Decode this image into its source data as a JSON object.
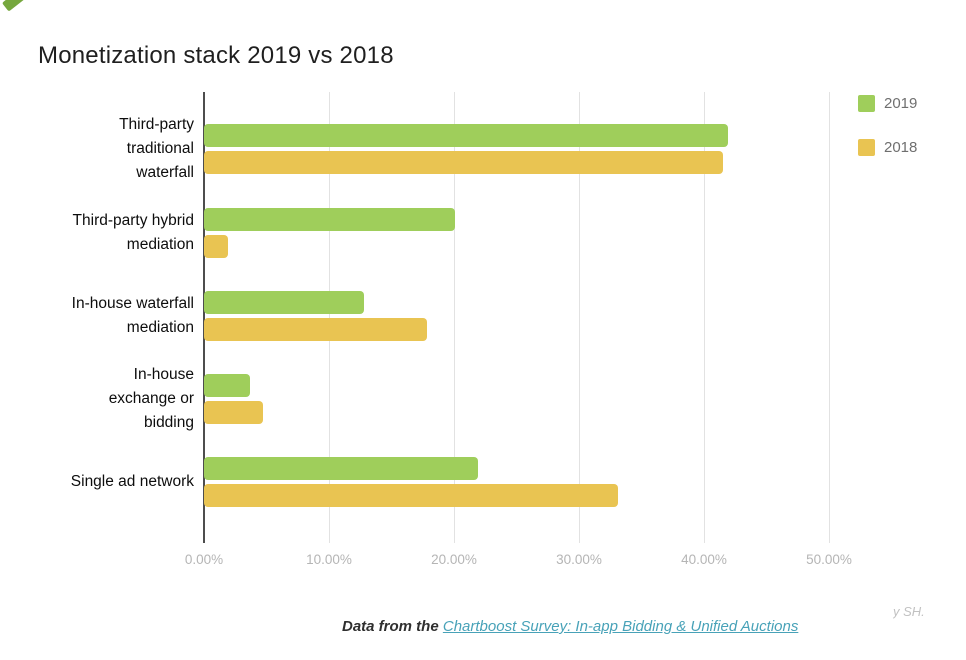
{
  "decor": {
    "corner_mark_color": "#76a73e"
  },
  "chart_data": {
    "type": "bar",
    "orientation": "horizontal",
    "title": "Monetization stack 2019 vs 2018",
    "categories": [
      "Third-party traditional waterfall",
      "Third-party hybrid mediation",
      "In-house waterfall mediation",
      "In-house exchange or bidding",
      "Single ad network"
    ],
    "category_lines": [
      [
        "Third-party",
        "traditional",
        "waterfall"
      ],
      [
        "Third-party hybrid",
        "mediation"
      ],
      [
        "In-house waterfall",
        "mediation"
      ],
      [
        "In-house",
        "exchange or",
        "bidding"
      ],
      [
        "Single ad network"
      ]
    ],
    "series": [
      {
        "name": "2019",
        "color": "#9fce5b",
        "values": [
          41.9,
          20.1,
          12.8,
          3.7,
          21.9
        ]
      },
      {
        "name": "2018",
        "color": "#e9c452",
        "values": [
          41.5,
          1.9,
          17.8,
          4.7,
          33.1
        ]
      }
    ],
    "x_ticks": [
      "0.00%",
      "10.00%",
      "20.00%",
      "30.00%",
      "40.00%",
      "50.00%"
    ],
    "xlabel": "",
    "ylabel": "",
    "xlim": [
      0,
      50
    ],
    "grid": true,
    "legend_position": "top-right",
    "axis_label_color": "#b5b5b5",
    "gridline_color": "#e2e2e2",
    "zero_line_color": "#4d4d4d"
  },
  "footer": {
    "prefix": "Data from the ",
    "link_text": "Chartboost Survey: In-app Bidding & Unified Auctions",
    "link_color": "#48a2b8",
    "watermark_fragment": "y SH."
  }
}
